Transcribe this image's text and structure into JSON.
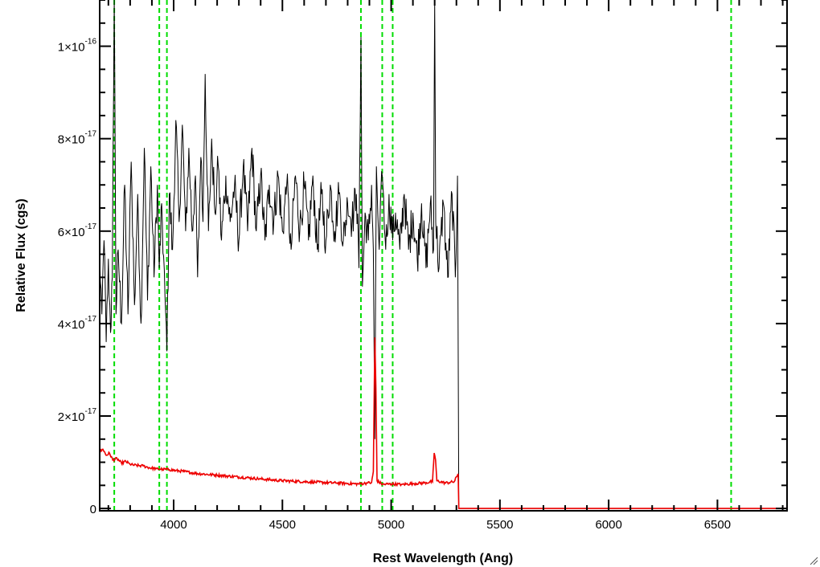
{
  "chart_data": {
    "type": "line",
    "xlabel": "Rest Wavelength (Ang)",
    "ylabel": "Relative Flux (cgs)",
    "xlim": [
      3660,
      6820
    ],
    "ylim": [
      -5e-19,
      1.1e-16
    ],
    "x_ticks": [
      4000,
      4500,
      5000,
      5500,
      6000,
      6500
    ],
    "x_tick_labels": [
      "4000",
      "4500",
      "5000",
      "5500",
      "6000",
      "6500"
    ],
    "y_ticks": [
      {
        "value": 0,
        "mantissa": "0",
        "exponent": ""
      },
      {
        "value": 2e-17,
        "mantissa": "2×10",
        "exponent": "-17"
      },
      {
        "value": 4e-17,
        "mantissa": "4×10",
        "exponent": "-17"
      },
      {
        "value": 6e-17,
        "mantissa": "6×10",
        "exponent": "-17"
      },
      {
        "value": 8e-17,
        "mantissa": "8×10",
        "exponent": "-17"
      },
      {
        "value": 1e-16,
        "mantissa": "1×10",
        "exponent": "-16"
      }
    ],
    "vertical_lines": [
      3727,
      3934,
      3969,
      4861,
      4959,
      5007,
      6563
    ],
    "vertical_line_color": "#00dd00",
    "series": [
      {
        "color": "#000000",
        "points": [
          [
            3660,
            5.5e-17
          ],
          [
            3670,
            4.2e-17
          ],
          [
            3680,
            5.8e-17
          ],
          [
            3690,
            3.6e-17
          ],
          [
            3700,
            5.4e-17
          ],
          [
            3710,
            3.8e-17
          ],
          [
            3718,
            5e-17
          ],
          [
            3727,
            1.15e-16
          ],
          [
            3735,
            4.2e-17
          ],
          [
            3745,
            5.6e-17
          ],
          [
            3760,
            4e-17
          ],
          [
            3775,
            7e-17
          ],
          [
            3790,
            4.2e-17
          ],
          [
            3805,
            7.5e-17
          ],
          [
            3820,
            4.4e-17
          ],
          [
            3835,
            6.8e-17
          ],
          [
            3850,
            4e-17
          ],
          [
            3865,
            7.8e-17
          ],
          [
            3880,
            4.5e-17
          ],
          [
            3895,
            7.4e-17
          ],
          [
            3910,
            5e-17
          ],
          [
            3925,
            7e-17
          ],
          [
            3934,
            5.2e-17
          ],
          [
            3945,
            6.6e-17
          ],
          [
            3960,
            4.6e-17
          ],
          [
            3969,
            3.4e-17
          ],
          [
            3980,
            6.8e-17
          ],
          [
            3995,
            5.6e-17
          ],
          [
            4010,
            8.4e-17
          ],
          [
            4025,
            6.2e-17
          ],
          [
            4040,
            8.3e-17
          ],
          [
            4055,
            6e-17
          ],
          [
            4070,
            7.8e-17
          ],
          [
            4085,
            6e-17
          ],
          [
            4100,
            7.2e-17
          ],
          [
            4110,
            5e-17
          ],
          [
            4125,
            7.6e-17
          ],
          [
            4135,
            6.2e-17
          ],
          [
            4145,
            9.4e-17
          ],
          [
            4160,
            6e-17
          ],
          [
            4175,
            8e-17
          ],
          [
            4190,
            6.4e-17
          ],
          [
            4205,
            7.4e-17
          ],
          [
            4220,
            5.8e-17
          ],
          [
            4240,
            7.2e-17
          ],
          [
            4260,
            6.2e-17
          ],
          [
            4280,
            7e-17
          ],
          [
            4300,
            5.8e-17
          ],
          [
            4320,
            7.4e-17
          ],
          [
            4340,
            6e-17
          ],
          [
            4360,
            7.8e-17
          ],
          [
            4380,
            6e-17
          ],
          [
            4400,
            7.2e-17
          ],
          [
            4420,
            5.8e-17
          ],
          [
            4440,
            7e-17
          ],
          [
            4460,
            6.2e-17
          ],
          [
            4480,
            7.2e-17
          ],
          [
            4500,
            6e-17
          ],
          [
            4520,
            7e-17
          ],
          [
            4540,
            5.6e-17
          ],
          [
            4560,
            7.2e-17
          ],
          [
            4580,
            6e-17
          ],
          [
            4600,
            7e-17
          ],
          [
            4620,
            5.8e-17
          ],
          [
            4640,
            7.2e-17
          ],
          [
            4660,
            5.6e-17
          ],
          [
            4680,
            6.8e-17
          ],
          [
            4700,
            5.8e-17
          ],
          [
            4720,
            7e-17
          ],
          [
            4740,
            6e-17
          ],
          [
            4760,
            6.8e-17
          ],
          [
            4780,
            5.8e-17
          ],
          [
            4800,
            6.6e-17
          ],
          [
            4820,
            6.2e-17
          ],
          [
            4840,
            6.8e-17
          ],
          [
            4852,
            5.2e-17
          ],
          [
            4861,
            1.02e-16
          ],
          [
            4868,
            4.8e-17
          ],
          [
            4880,
            6.4e-17
          ],
          [
            4895,
            5.8e-17
          ],
          [
            4910,
            7e-17
          ],
          [
            4918,
            5.6e-17
          ],
          [
            4925,
            1.5e-17
          ],
          [
            4932,
            7.4e-17
          ],
          [
            4945,
            5.6e-17
          ],
          [
            4959,
            7.2e-17
          ],
          [
            4975,
            5.6e-17
          ],
          [
            4990,
            6.8e-17
          ],
          [
            5007,
            5.8e-17
          ],
          [
            5020,
            6.4e-17
          ],
          [
            5040,
            5.6e-17
          ],
          [
            5060,
            6.8e-17
          ],
          [
            5080,
            5.6e-17
          ],
          [
            5100,
            6.4e-17
          ],
          [
            5120,
            5.4e-17
          ],
          [
            5140,
            6.6e-17
          ],
          [
            5160,
            5.2e-17
          ],
          [
            5180,
            6.6e-17
          ],
          [
            5195,
            5.6e-17
          ],
          [
            5200,
            1.15e-16
          ],
          [
            5205,
            6.2e-17
          ],
          [
            5220,
            5.2e-17
          ],
          [
            5240,
            6.6e-17
          ],
          [
            5260,
            5e-17
          ],
          [
            5280,
            6.8e-17
          ],
          [
            5295,
            5e-17
          ],
          [
            5305,
            7.2e-17
          ],
          [
            5311,
            0.0
          ],
          [
            5400,
            0.0
          ],
          [
            5600,
            0.0
          ],
          [
            6000,
            0.0
          ],
          [
            6400,
            0.0
          ],
          [
            6820,
            0.0
          ]
        ]
      },
      {
        "color": "#ee0000",
        "points": [
          [
            3660,
            1.22e-17
          ],
          [
            3675,
            1.28e-17
          ],
          [
            3690,
            1.15e-17
          ],
          [
            3705,
            1.2e-17
          ],
          [
            3720,
            1.05e-17
          ],
          [
            3740,
            1.08e-17
          ],
          [
            3760,
            9.8e-18
          ],
          [
            3780,
            1.02e-17
          ],
          [
            3800,
            9.5e-18
          ],
          [
            3830,
            9.3e-18
          ],
          [
            3860,
            9.2e-18
          ],
          [
            3890,
            8.8e-18
          ],
          [
            3920,
            8.6e-18
          ],
          [
            3950,
            8.5e-18
          ],
          [
            3980,
            8.4e-18
          ],
          [
            4010,
            8.2e-18
          ],
          [
            4050,
            8e-18
          ],
          [
            4100,
            7.6e-18
          ],
          [
            4150,
            7.4e-18
          ],
          [
            4200,
            7.2e-18
          ],
          [
            4250,
            7e-18
          ],
          [
            4300,
            6.8e-18
          ],
          [
            4350,
            6.6e-18
          ],
          [
            4400,
            6.4e-18
          ],
          [
            4450,
            6.2e-18
          ],
          [
            4500,
            6e-18
          ],
          [
            4550,
            5.9e-18
          ],
          [
            4600,
            5.8e-18
          ],
          [
            4650,
            5.7e-18
          ],
          [
            4700,
            5.6e-18
          ],
          [
            4750,
            5.5e-18
          ],
          [
            4800,
            5.4e-18
          ],
          [
            4850,
            5.3e-18
          ],
          [
            4890,
            5.5e-18
          ],
          [
            4910,
            5.6e-18
          ],
          [
            4918,
            8e-18
          ],
          [
            4925,
            3.7e-17
          ],
          [
            4930,
            2.6e-17
          ],
          [
            4935,
            6e-18
          ],
          [
            4960,
            5.2e-18
          ],
          [
            5000,
            5.3e-18
          ],
          [
            5050,
            5.2e-18
          ],
          [
            5100,
            5.4e-18
          ],
          [
            5150,
            5.5e-18
          ],
          [
            5190,
            5.8e-18
          ],
          [
            5198,
            1.2e-17
          ],
          [
            5204,
            1.05e-17
          ],
          [
            5210,
            6e-18
          ],
          [
            5250,
            5.5e-18
          ],
          [
            5290,
            5.8e-18
          ],
          [
            5308,
            7.5e-18
          ],
          [
            5311,
            0.0
          ],
          [
            5500,
            0.0
          ],
          [
            6000,
            0.0
          ],
          [
            6500,
            0.0
          ],
          [
            6820,
            0.0
          ]
        ]
      }
    ],
    "noise": true
  }
}
